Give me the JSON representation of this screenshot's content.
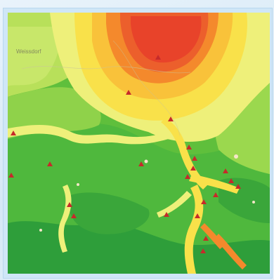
{
  "map": {
    "labels": [
      "Weissdorf"
    ],
    "colors": {
      "hotspot": "#e8432a",
      "orange": "#f4892c",
      "light-orange": "#f9b43a",
      "yellow": "#f9e14a",
      "pale-yellow": "#eef07a",
      "light-green": "#b8e05a",
      "green": "#7fcf46",
      "mid-green": "#4fb83d",
      "dark-green": "#2e9e3a",
      "marker": "#c62a2a",
      "frame": "#cfe6f7"
    },
    "marker_icon": "triangle-marker-icon"
  }
}
